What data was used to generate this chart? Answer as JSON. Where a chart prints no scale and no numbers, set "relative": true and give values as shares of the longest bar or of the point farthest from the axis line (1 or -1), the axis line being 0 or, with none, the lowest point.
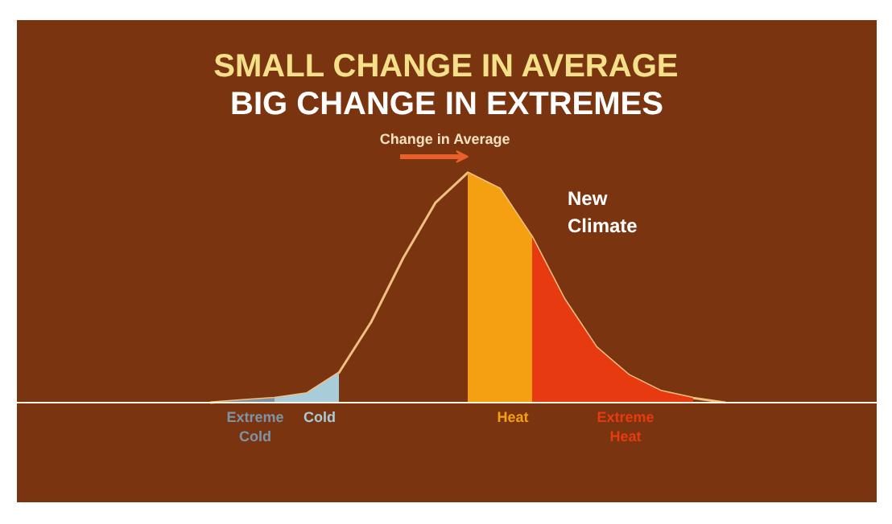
{
  "chart_data": {
    "type": "area",
    "relative": true,
    "title": "SMALL CHANGE IN AVERAGE",
    "subtitle": "BIG CHANGE IN EXTREMES",
    "categories": [
      null,
      null,
      null,
      null,
      null,
      null,
      null,
      null,
      null,
      null,
      null,
      null,
      null,
      null,
      null,
      null,
      null
    ],
    "series": [
      {
        "name": "New Climate",
        "type": "line",
        "color": "#f0c080",
        "values": [
          0,
          0.01,
          0.02,
          0.04,
          0.13,
          0.35,
          0.63,
          0.87,
          1.0,
          0.93,
          0.72,
          0.45,
          0.24,
          0.12,
          0.05,
          0.02,
          0
        ]
      },
      {
        "name": "Extreme Cold",
        "color": "#7f93a6",
        "values": [
          0,
          0.01,
          0.02,
          null,
          null,
          null,
          null,
          null,
          null,
          null,
          null,
          null,
          null,
          null,
          null,
          null,
          null
        ]
      },
      {
        "name": "Cold",
        "color": "#a8ccd8",
        "values": [
          null,
          null,
          0.02,
          0.04,
          0.13,
          null,
          null,
          null,
          null,
          null,
          null,
          null,
          null,
          null,
          null,
          null,
          null
        ]
      },
      {
        "name": "Heat",
        "color": "#f5a010",
        "values": [
          null,
          null,
          null,
          null,
          null,
          null,
          null,
          null,
          1.0,
          0.93,
          0.72,
          null,
          null,
          null,
          null,
          null,
          null
        ]
      },
      {
        "name": "Extreme Heat",
        "color": "#e83a10",
        "values": [
          null,
          null,
          null,
          null,
          null,
          null,
          null,
          null,
          null,
          null,
          0.72,
          0.45,
          0.24,
          0.12,
          0.05,
          0.02,
          null
        ]
      }
    ],
    "annotations": [
      "Change in Average"
    ]
  }
}
